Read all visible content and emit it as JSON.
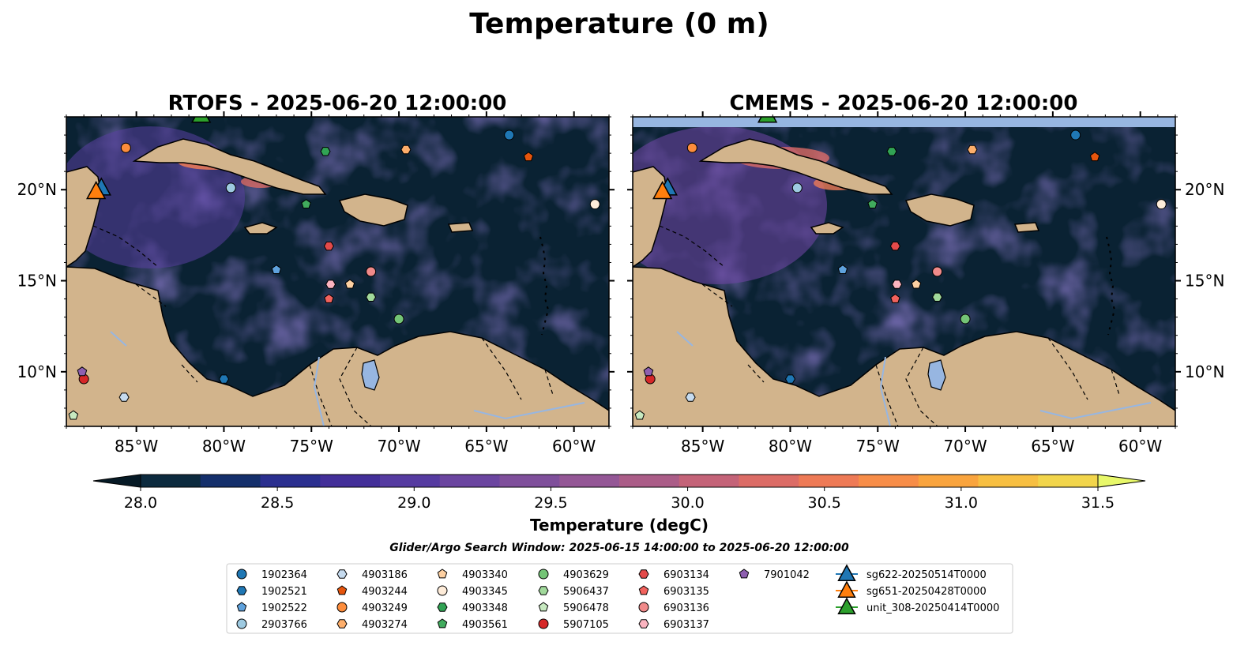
{
  "figure": {
    "title": "Temperature (0 m)",
    "search_window": "Glider/Argo Search Window: 2025-06-15 14:00:00 to 2025-06-20 12:00:00"
  },
  "panels": [
    {
      "title": "RTOFS - 2025-06-20 12:00:00",
      "top_band": false
    },
    {
      "title": "CMEMS - 2025-06-20 12:00:00",
      "top_band": true
    }
  ],
  "map": {
    "lon_range": [
      -89,
      -58
    ],
    "lat_range": [
      7,
      24
    ],
    "x_ticks": [
      {
        "value": -85,
        "label": "85°W"
      },
      {
        "value": -80,
        "label": "80°W"
      },
      {
        "value": -75,
        "label": "75°W"
      },
      {
        "value": -70,
        "label": "70°W"
      },
      {
        "value": -65,
        "label": "65°W"
      },
      {
        "value": -60,
        "label": "60°W"
      }
    ],
    "y_ticks": [
      {
        "value": 10,
        "label": "10°N"
      },
      {
        "value": 15,
        "label": "15°N"
      },
      {
        "value": 20,
        "label": "20°N"
      }
    ],
    "ocean_color": "#0a2233",
    "land_color": "#d2b48c",
    "lake_color": "#97b6e1",
    "band_color": "#97b6e1"
  },
  "colorbar": {
    "label": "Temperature (degC)",
    "min": 28.0,
    "max": 31.5,
    "step": 0.25,
    "extend": "both",
    "tick_labels": [
      "28.0",
      "28.5",
      "29.0",
      "29.5",
      "30.0",
      "30.5",
      "31.0",
      "31.5"
    ],
    "colors": [
      "#0c2a3e",
      "#142f6b",
      "#2a2f8f",
      "#432f99",
      "#563ba1",
      "#6b45a0",
      "#7f4f9b",
      "#945796",
      "#ab5d88",
      "#c46378",
      "#dc6c66",
      "#ee7a56",
      "#f78d48",
      "#f9a43e",
      "#f7bf42",
      "#f2d54b"
    ],
    "under_color": "#061a26",
    "over_color": "#e8f86a"
  },
  "floats": [
    {
      "id": "1902364",
      "lon": -63.7,
      "lat": 23.0,
      "marker": "circle",
      "color": "#1f77b4"
    },
    {
      "id": "1902521",
      "lon": -80.0,
      "lat": 9.6,
      "marker": "hexagon",
      "color": "#1f77b4"
    },
    {
      "id": "1902522",
      "lon": -77.0,
      "lat": 15.6,
      "marker": "pentagon",
      "color": "#5fa2dd"
    },
    {
      "id": "2903766",
      "lon": -79.6,
      "lat": 20.1,
      "marker": "circle",
      "color": "#9ecae1"
    },
    {
      "id": "4903186",
      "lon": -85.7,
      "lat": 8.6,
      "marker": "hexagon",
      "color": "#c6dbef"
    },
    {
      "id": "4903244",
      "lon": -62.6,
      "lat": 21.8,
      "marker": "pentagon",
      "color": "#e6550d"
    },
    {
      "id": "4903249",
      "lon": -85.6,
      "lat": 22.3,
      "marker": "circle",
      "color": "#fd8d3c"
    },
    {
      "id": "4903274",
      "lon": -69.6,
      "lat": 22.2,
      "marker": "hexagon",
      "color": "#fdae6b"
    },
    {
      "id": "4903340",
      "lon": -72.8,
      "lat": 14.8,
      "marker": "pentagon",
      "color": "#fdd0a2"
    },
    {
      "id": "4903345",
      "lon": -58.8,
      "lat": 19.2,
      "marker": "circle",
      "color": "#feecd9"
    },
    {
      "id": "4903348",
      "lon": -74.2,
      "lat": 22.1,
      "marker": "hexagon",
      "color": "#31a354"
    },
    {
      "id": "4903561",
      "lon": -75.3,
      "lat": 19.2,
      "marker": "pentagon",
      "color": "#41ab5d"
    },
    {
      "id": "4903629",
      "lon": -70.0,
      "lat": 12.9,
      "marker": "circle",
      "color": "#74c476"
    },
    {
      "id": "5906437",
      "lon": -71.6,
      "lat": 14.1,
      "marker": "hexagon",
      "color": "#a1d99b"
    },
    {
      "id": "5906478",
      "lon": -88.6,
      "lat": 7.6,
      "marker": "pentagon",
      "color": "#c7e9c0"
    },
    {
      "id": "5907105",
      "lon": -88.0,
      "lat": 9.6,
      "marker": "circle",
      "color": "#d62728"
    },
    {
      "id": "6903134",
      "lon": -74.0,
      "lat": 16.9,
      "marker": "hexagon",
      "color": "#e34a4a"
    },
    {
      "id": "6903135",
      "lon": -74.0,
      "lat": 14.0,
      "marker": "pentagon",
      "color": "#f2625d"
    },
    {
      "id": "6903136",
      "lon": -71.6,
      "lat": 15.5,
      "marker": "circle",
      "color": "#f08a8a"
    },
    {
      "id": "6903137",
      "lon": -73.9,
      "lat": 14.8,
      "marker": "hexagon",
      "color": "#fbb4c0"
    },
    {
      "id": "7901042",
      "lon": -88.1,
      "lat": 10.0,
      "marker": "pentagon",
      "color": "#8e5fb0"
    }
  ],
  "gliders": [
    {
      "id": "sg622-20250514T0000",
      "lon": -87.0,
      "lat": 20.1,
      "color": "#1f77b4"
    },
    {
      "id": "sg651-20250428T0000",
      "lon": -87.3,
      "lat": 19.9,
      "color": "#ff7f0e"
    },
    {
      "id": "unit_308-20250414T0000",
      "lon": -81.3,
      "lat": 24.1,
      "color": "#2ca02c"
    }
  ]
}
